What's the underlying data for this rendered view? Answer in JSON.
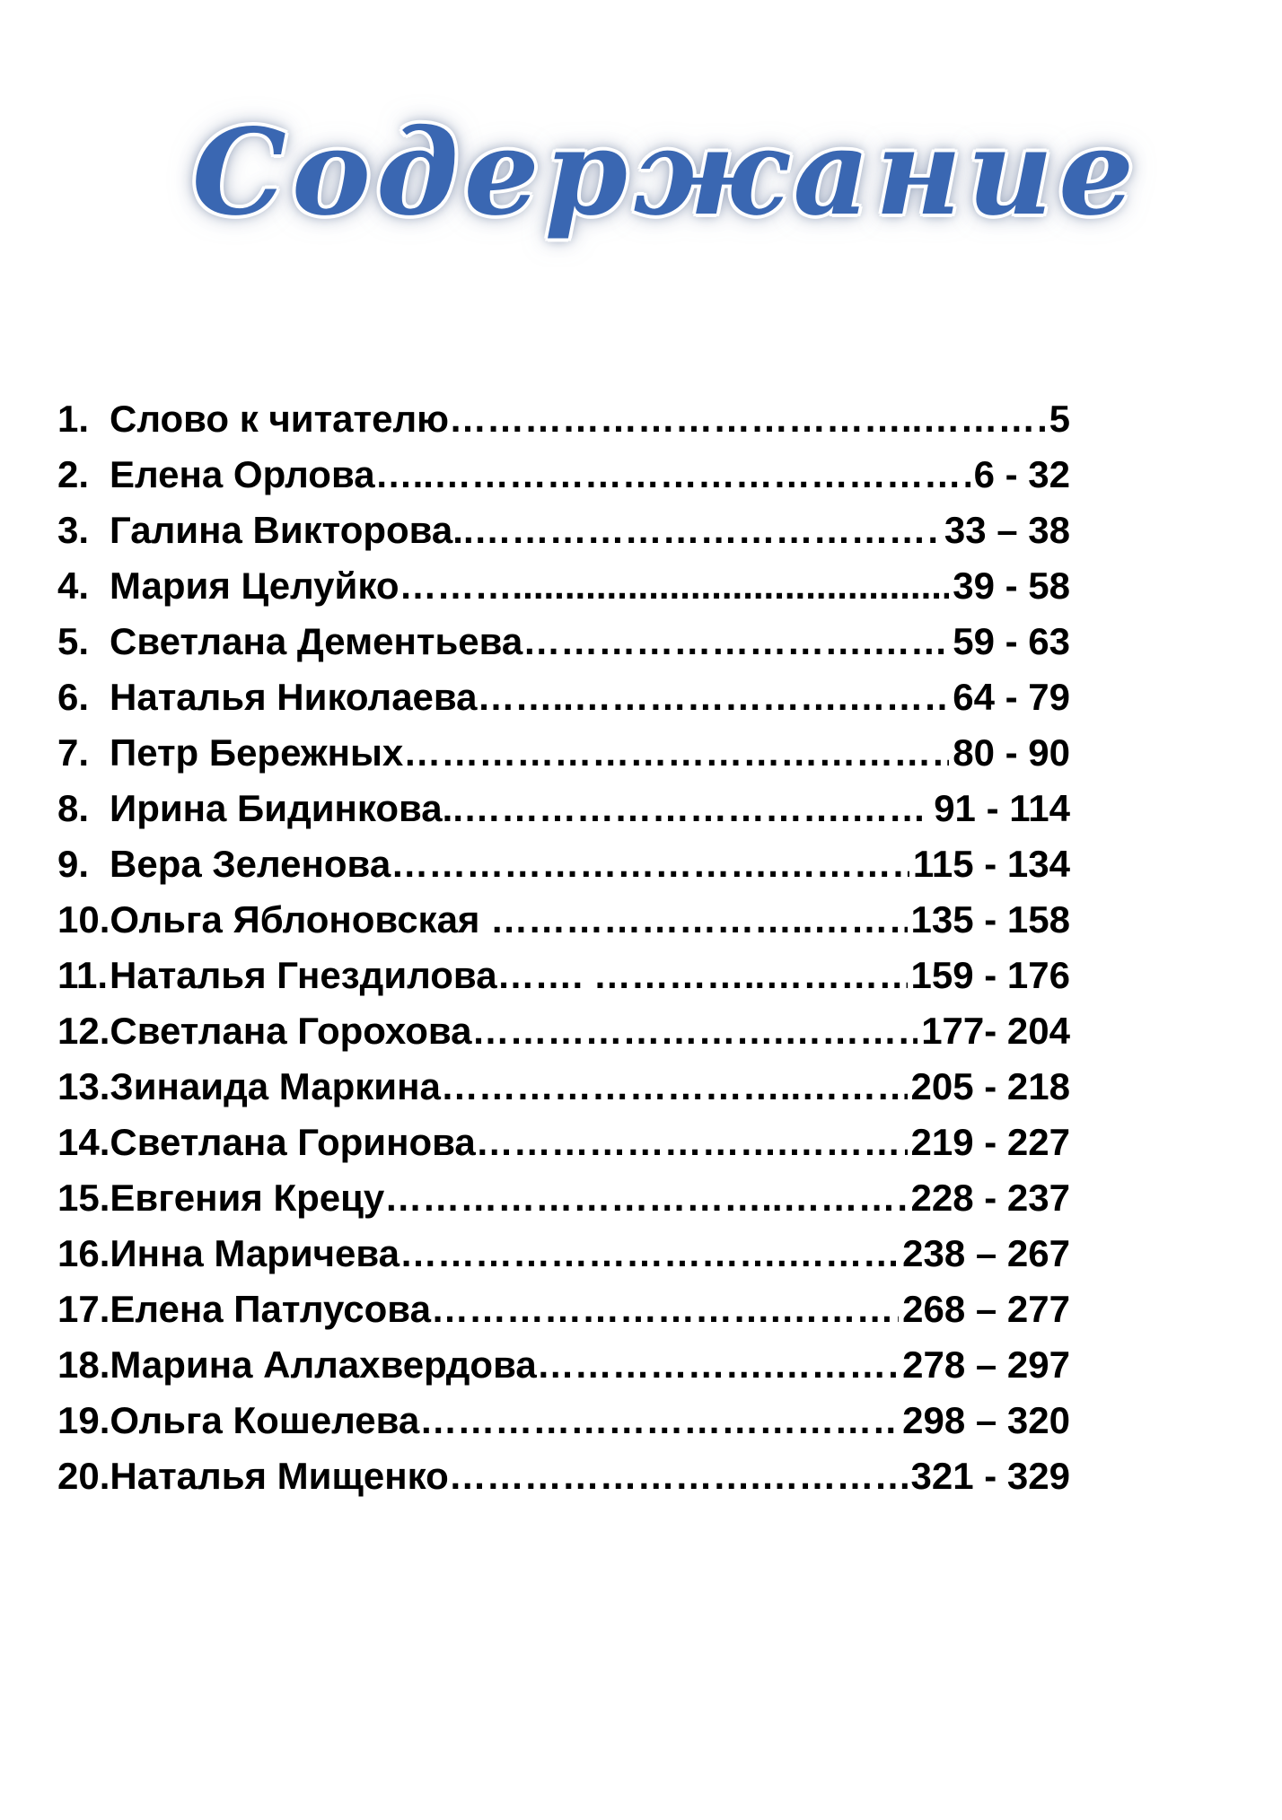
{
  "page": {
    "title": "Содержание"
  },
  "colors": {
    "title_blue": "#3a67b2",
    "text_black": "#000000",
    "background": "#ffffff"
  },
  "toc": {
    "entries": [
      {
        "num": "1.",
        "name": "Слово к читателю",
        "leader": "………………………………..………………………",
        "pages": "5"
      },
      {
        "num": "2.",
        "name": "Елена Орлова",
        "leader": "…..………………………………………………",
        "pages": "6 - 32"
      },
      {
        "num": "3.",
        "name": "Галина Викторова",
        "leader": "..……………………………………………",
        "pages": "33 – 38"
      },
      {
        "num": "4.",
        "name": "Мария Целуйко",
        "leader": "……….....................................................",
        "pages": "39 - 58"
      },
      {
        "num": "5.",
        "name": "Светлана Дементьева",
        "leader": "……………………….……………………",
        "pages": "59 - 63"
      },
      {
        "num": "6.",
        "name": "Наталья Николаева",
        "leader": "……..………………….…………………",
        "pages": "64 - 79"
      },
      {
        "num": "7.",
        "name": "Петр Бережных",
        "leader": "………………………………………………",
        "pages": "80 - 90"
      },
      {
        "num": "8.",
        "name": "Ирина Бидинкова",
        "leader": "..………………………….………………",
        "pages": "91 - 114"
      },
      {
        "num": "9.",
        "name": "Вера Зеленова",
        "leader": "………………………….…………………",
        "pages": "115 - 134"
      },
      {
        "num": "10.",
        "name": "Ольга Яблоновская",
        "leader": " ……………………..……………………",
        "pages": "135 - 158"
      },
      {
        "num": "11.",
        "name": "Наталья Гнездилова",
        "leader": "……. …………..………………………",
        "pages": "159 - 176"
      },
      {
        "num": "12.",
        "name": "Светлана Горохова",
        "leader": "…………………….………………………",
        "pages": "177- 204"
      },
      {
        "num": "13.",
        "name": "Зинаида Маркина",
        "leader": "………………………..……………………",
        "pages": "205 - 218"
      },
      {
        "num": "14.",
        "name": "Светлана Горинова",
        "leader": "…………………….……………………… ",
        "pages": "219 - 227"
      },
      {
        "num": "15.",
        "name": "Евгения Крецу",
        "leader": "…………………………..………………… ",
        "pages": "228 - 237"
      },
      {
        "num": "16.",
        "name": "Инна Маричева",
        "leader": "………………………….…………………",
        "pages": "238 – 267"
      },
      {
        "num": "17.",
        "name": "Елена Патлусова",
        "leader": "……………………….…………………… ",
        "pages": "268 – 277"
      },
      {
        "num": "18.",
        "name": "Марина Аллахвердова",
        "leader": "……………….……………………… ",
        "pages": "278 – 297"
      },
      {
        "num": "19.",
        "name": "Ольга Кошелева",
        "leader": "…………………………………………",
        "pages": "298 – 320"
      },
      {
        "num": "20.",
        "name": "Наталья Мищенко",
        "leader": "…………………….…………………… ",
        "pages": "321 - 329"
      }
    ]
  }
}
